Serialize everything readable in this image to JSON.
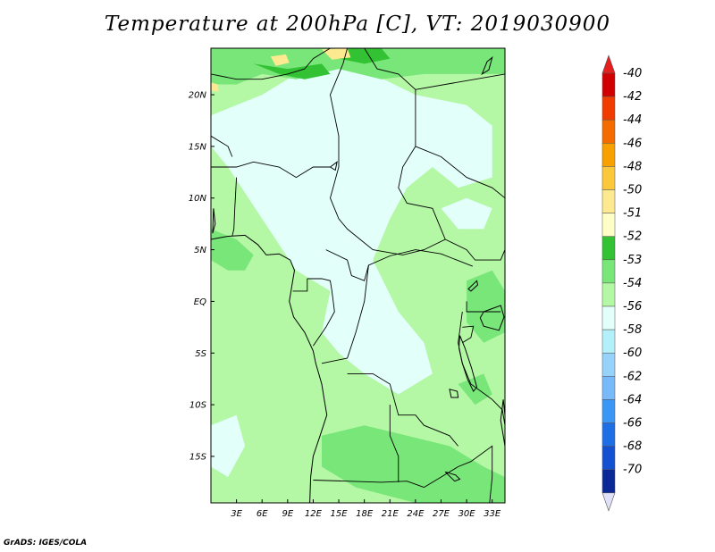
{
  "title": "Temperature at 200hPa [C], VT: 2019030900",
  "credit": "GrADS: IGES/COLA",
  "chart_data": {
    "type": "heatmap",
    "title": "Temperature at 200hPa [C], VT: 2019030900",
    "variable": "Temperature",
    "units": "C",
    "level": "200hPa",
    "valid_time": "2019030900",
    "xlim": [
      0,
      34.5
    ],
    "ylim": [
      -19.5,
      24.5
    ],
    "x_ticks": [
      {
        "value": 3,
        "label": "3E"
      },
      {
        "value": 6,
        "label": "6E"
      },
      {
        "value": 9,
        "label": "9E"
      },
      {
        "value": 12,
        "label": "12E"
      },
      {
        "value": 15,
        "label": "15E"
      },
      {
        "value": 18,
        "label": "18E"
      },
      {
        "value": 21,
        "label": "21E"
      },
      {
        "value": 24,
        "label": "24E"
      },
      {
        "value": 27,
        "label": "27E"
      },
      {
        "value": 30,
        "label": "30E"
      },
      {
        "value": 33,
        "label": "33E"
      }
    ],
    "y_ticks": [
      {
        "value": 20,
        "label": "20N"
      },
      {
        "value": 15,
        "label": "15N"
      },
      {
        "value": 10,
        "label": "10N"
      },
      {
        "value": 5,
        "label": "5N"
      },
      {
        "value": 0,
        "label": "EQ"
      },
      {
        "value": -5,
        "label": "5S"
      },
      {
        "value": -10,
        "label": "10S"
      },
      {
        "value": -15,
        "label": "15S"
      }
    ],
    "colorbar": [
      {
        "label": "-40",
        "color": "#d00000"
      },
      {
        "label": "-42",
        "color": "#f03c00"
      },
      {
        "label": "-44",
        "color": "#f46c00"
      },
      {
        "label": "-46",
        "color": "#f7a000"
      },
      {
        "label": "-48",
        "color": "#fbc83c"
      },
      {
        "label": "-50",
        "color": "#fdea90"
      },
      {
        "label": "-51",
        "color": "#fefec8"
      },
      {
        "label": "-52",
        "color": "#33c233"
      },
      {
        "label": "-53",
        "color": "#78e678"
      },
      {
        "label": "-54",
        "color": "#b4f7a4"
      },
      {
        "label": "-56",
        "color": "#e2fffa"
      },
      {
        "label": "-58",
        "color": "#b4f0fa"
      },
      {
        "label": "-60",
        "color": "#96d2fa"
      },
      {
        "label": "-62",
        "color": "#78b9fa"
      },
      {
        "label": "-64",
        "color": "#3c96f5"
      },
      {
        "label": "-66",
        "color": "#1e6ee6"
      },
      {
        "label": "-68",
        "color": "#1450d2"
      },
      {
        "label": "-70",
        "color": "#0a2896"
      }
    ],
    "colorbar_top_color": "#e61e1e",
    "colorbar_bottom_color": "#e0e0f8",
    "regions": [
      {
        "value": "-54",
        "color": "#e2fffa",
        "polygon": [
          [
            6,
            20
          ],
          [
            10,
            22
          ],
          [
            14,
            23
          ],
          [
            19,
            22
          ],
          [
            24,
            20
          ],
          [
            30,
            19
          ],
          [
            33,
            17
          ],
          [
            33,
            12
          ],
          [
            29,
            11
          ],
          [
            26,
            13
          ],
          [
            23,
            11
          ],
          [
            21,
            8
          ],
          [
            19,
            4
          ],
          [
            22,
            -1
          ],
          [
            25,
            -4
          ],
          [
            26,
            -7
          ],
          [
            22,
            -9
          ],
          [
            18,
            -7
          ],
          [
            15,
            -5
          ],
          [
            13,
            -3
          ],
          [
            14,
            1
          ],
          [
            10,
            3
          ],
          [
            6,
            8
          ],
          [
            2,
            13
          ],
          [
            0,
            15
          ],
          [
            0,
            18
          ],
          [
            3,
            19
          ]
        ]
      },
      {
        "value": "-54",
        "color": "#e2fffa",
        "polygon": [
          [
            18,
            14
          ],
          [
            21,
            16
          ],
          [
            25,
            15
          ],
          [
            23,
            13
          ],
          [
            20,
            12
          ]
        ]
      },
      {
        "value": "-54",
        "color": "#e2fffa",
        "polygon": [
          [
            27,
            9
          ],
          [
            30,
            10
          ],
          [
            33,
            9
          ],
          [
            32,
            7
          ],
          [
            29,
            7
          ]
        ]
      },
      {
        "value": "-54",
        "color": "#e2fffa",
        "polygon": [
          [
            0,
            -12
          ],
          [
            3,
            -11
          ],
          [
            4,
            -14
          ],
          [
            2,
            -17
          ],
          [
            0,
            -16
          ]
        ]
      },
      {
        "value": "-52",
        "color": "#78e678",
        "polygon": [
          [
            0,
            24.5
          ],
          [
            34.5,
            24.5
          ],
          [
            34.5,
            22
          ],
          [
            25,
            22
          ],
          [
            20,
            21.5
          ],
          [
            15,
            22.5
          ],
          [
            10,
            21.5
          ],
          [
            6,
            22
          ],
          [
            3,
            21
          ],
          [
            0,
            21
          ]
        ]
      },
      {
        "value": "-52",
        "color": "#78e678",
        "polygon": [
          [
            0,
            7
          ],
          [
            3,
            6
          ],
          [
            5,
            4.5
          ],
          [
            4,
            3
          ],
          [
            2,
            3
          ],
          [
            0,
            4
          ]
        ]
      },
      {
        "value": "-52",
        "color": "#78e678",
        "polygon": [
          [
            30,
            2
          ],
          [
            33,
            3
          ],
          [
            34.5,
            1
          ],
          [
            34.5,
            -3
          ],
          [
            32,
            -4
          ],
          [
            30,
            -2
          ]
        ]
      },
      {
        "value": "-52",
        "color": "#78e678",
        "polygon": [
          [
            13,
            -13
          ],
          [
            18,
            -12
          ],
          [
            23,
            -13
          ],
          [
            28,
            -14
          ],
          [
            32,
            -16
          ],
          [
            34.5,
            -17
          ],
          [
            34.5,
            -19.5
          ],
          [
            24,
            -19.5
          ],
          [
            17,
            -18
          ],
          [
            13,
            -16
          ]
        ]
      },
      {
        "value": "-52",
        "color": "#78e678",
        "polygon": [
          [
            29,
            -8
          ],
          [
            32,
            -7
          ],
          [
            33,
            -9
          ],
          [
            31,
            -10
          ]
        ]
      },
      {
        "value": "-51",
        "color": "#33c233",
        "polygon": [
          [
            5,
            23
          ],
          [
            9,
            22.5
          ],
          [
            13,
            23
          ],
          [
            14,
            22
          ],
          [
            11,
            21.5
          ],
          [
            8,
            22
          ]
        ]
      },
      {
        "value": "-51",
        "color": "#33c233",
        "polygon": [
          [
            15,
            24.5
          ],
          [
            20,
            24.5
          ],
          [
            21,
            23.5
          ],
          [
            18,
            23
          ],
          [
            15,
            23.5
          ]
        ]
      },
      {
        "value": "-50",
        "color": "#fdea90",
        "polygon": [
          [
            7,
            23.7
          ],
          [
            8.8,
            23.9
          ],
          [
            9.2,
            23.1
          ],
          [
            7.6,
            22.8
          ]
        ]
      },
      {
        "value": "-50",
        "color": "#fdea90",
        "polygon": [
          [
            13,
            24.4
          ],
          [
            16,
            24.5
          ],
          [
            16.4,
            23.6
          ],
          [
            14.2,
            23.4
          ]
        ]
      },
      {
        "value": "-50",
        "color": "#fdea90",
        "polygon": [
          [
            0,
            21.2
          ],
          [
            0.8,
            21
          ],
          [
            0.9,
            20.3
          ],
          [
            0,
            20.4
          ]
        ]
      }
    ],
    "coastlines": [
      [
        [
          0,
          6
        ],
        [
          2,
          6.3
        ],
        [
          4,
          6.4
        ],
        [
          5.5,
          5.5
        ],
        [
          6.5,
          4.5
        ],
        [
          8,
          4.6
        ],
        [
          9.3,
          4
        ],
        [
          9.8,
          3
        ],
        [
          9.6,
          2
        ],
        [
          9.4,
          1
        ],
        [
          9.2,
          0
        ],
        [
          9.7,
          -1.5
        ],
        [
          11,
          -3
        ],
        [
          12,
          -4.8
        ],
        [
          12.3,
          -6
        ],
        [
          13,
          -8
        ],
        [
          13.3,
          -9.5
        ],
        [
          13.6,
          -11
        ],
        [
          12.8,
          -13
        ],
        [
          12,
          -15
        ],
        [
          11.7,
          -17
        ],
        [
          11.6,
          -19.5
        ]
      ]
    ],
    "borders": [
      [
        [
          0,
          22
        ],
        [
          3,
          21.5
        ],
        [
          6,
          21.5
        ],
        [
          9,
          22
        ],
        [
          11,
          22.5
        ],
        [
          12,
          23.5
        ],
        [
          14,
          24.5
        ]
      ],
      [
        [
          18,
          24.5
        ],
        [
          19.5,
          22.5
        ],
        [
          22,
          22
        ],
        [
          24,
          20.5
        ]
      ],
      [
        [
          24,
          20.5
        ],
        [
          24,
          15
        ],
        [
          22.5,
          13
        ],
        [
          22,
          11
        ],
        [
          23,
          9.5
        ],
        [
          26,
          9
        ],
        [
          27.5,
          6
        ],
        [
          25,
          5
        ],
        [
          22.5,
          4.5
        ],
        [
          19,
          5
        ],
        [
          16,
          7
        ],
        [
          15,
          8
        ],
        [
          14,
          10
        ],
        [
          15,
          13
        ],
        [
          15,
          16
        ],
        [
          14,
          20
        ],
        [
          15.5,
          23
        ],
        [
          16,
          24.5
        ]
      ],
      [
        [
          24,
          20.5
        ],
        [
          34.5,
          22
        ]
      ],
      [
        [
          24,
          15
        ],
        [
          27,
          14
        ],
        [
          30,
          12
        ],
        [
          33,
          11
        ],
        [
          34.5,
          10
        ]
      ],
      [
        [
          27.5,
          6
        ],
        [
          30,
          5
        ],
        [
          31,
          4
        ],
        [
          34,
          4
        ],
        [
          34.5,
          5
        ]
      ],
      [
        [
          0,
          13
        ],
        [
          3,
          13
        ],
        [
          5,
          13.5
        ],
        [
          8,
          13
        ],
        [
          10,
          12
        ],
        [
          12,
          13
        ],
        [
          14,
          13
        ]
      ],
      [
        [
          0,
          16
        ],
        [
          2,
          15
        ],
        [
          2.5,
          14
        ]
      ],
      [
        [
          3,
          12
        ],
        [
          2.8,
          9
        ],
        [
          2.7,
          7
        ],
        [
          2.5,
          6.3
        ]
      ],
      [
        [
          13.5,
          5
        ],
        [
          16,
          4
        ],
        [
          16.5,
          2.5
        ],
        [
          18,
          2
        ],
        [
          18.5,
          3.5
        ],
        [
          21,
          4.4
        ],
        [
          24,
          5
        ],
        [
          27,
          4.6
        ],
        [
          30.7,
          3.4
        ]
      ],
      [
        [
          18.5,
          3.5
        ],
        [
          18,
          0
        ],
        [
          17,
          -3
        ],
        [
          16,
          -5.5
        ],
        [
          13,
          -6
        ]
      ],
      [
        [
          11.3,
          2.2
        ],
        [
          13,
          2.2
        ],
        [
          14,
          2
        ],
        [
          14.2,
          1
        ],
        [
          14.5,
          -1
        ],
        [
          13.5,
          -2.5
        ],
        [
          12,
          -4.3
        ]
      ],
      [
        [
          9.6,
          1
        ],
        [
          11.3,
          1
        ],
        [
          11.3,
          2.2
        ]
      ],
      [
        [
          16,
          -7
        ],
        [
          19,
          -7
        ],
        [
          21,
          -8
        ],
        [
          22,
          -11
        ],
        [
          24,
          -11
        ],
        [
          25,
          -12
        ],
        [
          28,
          -13
        ],
        [
          29,
          -14
        ]
      ],
      [
        [
          12,
          -17.3
        ],
        [
          16,
          -17.4
        ],
        [
          20,
          -17.5
        ],
        [
          23,
          -17.4
        ],
        [
          25,
          -18
        ]
      ],
      [
        [
          21,
          -10
        ],
        [
          21,
          -13
        ],
        [
          22,
          -15
        ],
        [
          22,
          -17.5
        ]
      ],
      [
        [
          29.5,
          -1
        ],
        [
          29,
          -4
        ],
        [
          29.5,
          -6
        ],
        [
          30.5,
          -8
        ],
        [
          33,
          -9.5
        ]
      ],
      [
        [
          30,
          0
        ],
        [
          30,
          -1
        ],
        [
          31.5,
          -1
        ],
        [
          34,
          -1
        ]
      ],
      [
        [
          29.5,
          -2.5
        ],
        [
          30.8,
          -2.4
        ],
        [
          30.5,
          -3.5
        ],
        [
          29.5,
          -4
        ]
      ],
      [
        [
          25,
          -18
        ],
        [
          27,
          -17
        ],
        [
          29,
          -16
        ],
        [
          30.5,
          -15.5
        ],
        [
          33,
          -14
        ],
        [
          33,
          -17
        ],
        [
          32.7,
          -19.5
        ]
      ],
      [
        [
          33,
          -9.5
        ],
        [
          34.2,
          -10.5
        ],
        [
          34.5,
          -12
        ]
      ]
    ],
    "lakes": [
      [
        [
          32,
          -1
        ],
        [
          34,
          -0.4
        ],
        [
          34.4,
          -1.5
        ],
        [
          33.8,
          -2.8
        ],
        [
          32,
          -2.4
        ],
        [
          31.6,
          -1.6
        ]
      ],
      [
        [
          29.2,
          -3.3
        ],
        [
          29.8,
          -4.5
        ],
        [
          30.6,
          -6.5
        ],
        [
          31.2,
          -8.3
        ],
        [
          30.8,
          -8.7
        ],
        [
          30.1,
          -7.5
        ],
        [
          29.5,
          -6
        ],
        [
          29.1,
          -4.5
        ]
      ],
      [
        [
          34.3,
          -9.5
        ],
        [
          34.5,
          -11
        ],
        [
          34.5,
          -14
        ],
        [
          34.3,
          -13
        ],
        [
          34,
          -11.5
        ]
      ],
      [
        [
          30.2,
          1.2
        ],
        [
          31.2,
          2
        ],
        [
          31.3,
          1.6
        ],
        [
          30.5,
          1
        ]
      ],
      [
        [
          28,
          -8.5
        ],
        [
          28.9,
          -8.7
        ],
        [
          29,
          -9.3
        ],
        [
          28.2,
          -9.3
        ]
      ],
      [
        [
          14,
          13
        ],
        [
          14.8,
          13.5
        ],
        [
          14.6,
          12.7
        ]
      ],
      [
        [
          0.3,
          9
        ],
        [
          0.5,
          7.5
        ],
        [
          0.2,
          6.6
        ]
      ],
      [
        [
          27.5,
          -16.5
        ],
        [
          28.7,
          -16.8
        ],
        [
          29.2,
          -17.2
        ],
        [
          28.6,
          -17.4
        ]
      ],
      [
        [
          31.8,
          22
        ],
        [
          32.4,
          23.2
        ],
        [
          33,
          23.6
        ],
        [
          32.6,
          22.4
        ]
      ]
    ],
    "grid": false
  }
}
